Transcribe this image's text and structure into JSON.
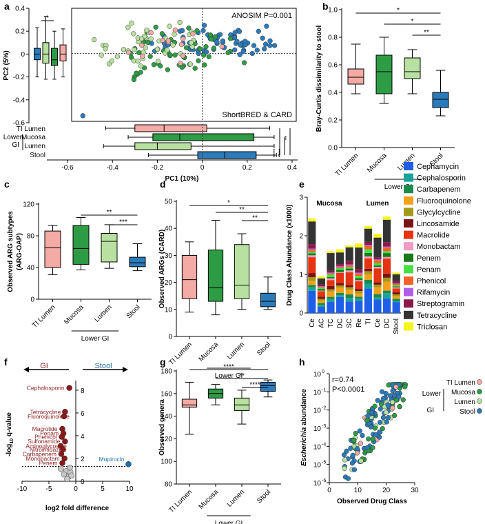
{
  "colors": {
    "ti": "#f4aaa5",
    "mucosa": "#2e9b45",
    "lumen": "#b8e0a0",
    "stool": "#2b7bba",
    "gi": "#8b1a1a",
    "stoolText": "#1c6ea4",
    "grey": "#c8c8c8"
  },
  "groups": {
    "ti": "TI Lumen",
    "mucosa": "Mucosa",
    "lumen": "Lumen",
    "stool": "Stool",
    "lower": "Lower GI",
    "lowerShort": "Lower",
    "gi": "GI"
  },
  "panels": {
    "a": {
      "label": "a",
      "anosim": "ANOSIM P=0.001",
      "method": "ShortBRED & CARD",
      "xlabel": "PC1 (10%)",
      "ylabel": "PC2 (5%)",
      "xticks": [
        "-0.6",
        "-0.4",
        "-0.2",
        "0",
        "0.2",
        "0.4"
      ],
      "yticks": [
        "0.4",
        "0.2",
        "0",
        "-0.2",
        "-0.4",
        "-0.6"
      ],
      "sig_small": "*",
      "sig_h1": "****",
      "sig_h2": "****",
      "sig_h3": "**"
    },
    "b": {
      "label": "b",
      "ylabel": "Bray-Curtis dissimilarity to stool",
      "yticks": [
        "0.0",
        "0.2",
        "0.4",
        "0.6",
        "0.8",
        "1.0"
      ],
      "sig": [
        "*",
        "*",
        "**"
      ]
    },
    "c": {
      "label": "c",
      "ylabel1": "Observed ARG subtypes",
      "ylabel2": "(ARG-OAP)",
      "yticks": [
        "0",
        "40",
        "80",
        "120"
      ],
      "sig": [
        "**",
        "***"
      ]
    },
    "d": {
      "label": "d",
      "ylabel": "Observed ARGs (CARD)",
      "yticks": [
        "0",
        "10",
        "20",
        "30",
        "40",
        "50"
      ],
      "sig": [
        "*",
        "**",
        "**"
      ]
    },
    "e": {
      "label": "e",
      "ylabel": "Drug Class Abundance (x1000)",
      "yticks": [
        "0",
        "1",
        "2",
        "3"
      ],
      "mucosa": "Mucosa",
      "lumen": "Lumen"
    },
    "f": {
      "label": "f",
      "ylabel": "-log",
      "ysub": "10",
      "ylabel_tail": " q-value",
      "xlabel": "log2 fold difference",
      "xticks": [
        "-10",
        "-5",
        "0",
        "5",
        "10"
      ],
      "yticks": [
        "0",
        "2",
        "4",
        "6",
        "8"
      ],
      "left": "GI",
      "right": "Stool"
    },
    "g": {
      "label": "g",
      "ylabel": "Observed genera",
      "yticks": [
        "80",
        "100",
        "120",
        "140",
        "160",
        "180"
      ],
      "sig": [
        "****",
        "**",
        "****"
      ]
    },
    "h": {
      "label": "h",
      "r": "r=0.74",
      "p": "P<0.0001",
      "ylabel_i": "Escherichia",
      "ylabel_r": " abundance",
      "xlabel": "Observed Drug Class",
      "xticks": [
        "0",
        "10",
        "20",
        "30"
      ],
      "yexp": [
        "0",
        "-1",
        "-2",
        "-3",
        "-4",
        "-5",
        "-6"
      ],
      "ybase": "10"
    }
  },
  "chart_data": [
    {
      "panel": "a",
      "type": "scatter",
      "title": "PCA of ARG profiles",
      "xlabel": "PC1 (10%)",
      "ylabel": "PC2 (5%)",
      "xlim": [
        -0.6,
        0.4
      ],
      "ylim": [
        -0.6,
        0.4
      ],
      "boxplots_pc2": {
        "ti": [
          -0.2,
          -0.05,
          0.0,
          0.05,
          0.23
        ],
        "stool": [
          -0.22,
          -0.08,
          0.0,
          0.1,
          0.33
        ],
        "mucosa": [
          -0.22,
          -0.1,
          -0.05,
          0.05,
          0.2
        ],
        "lumen": [
          -0.2,
          -0.06,
          0.0,
          0.08,
          0.22
        ]
      },
      "boxplots_pc1": {
        "ti": [
          -0.43,
          -0.3,
          -0.17,
          0.02,
          0.3
        ],
        "mucosa": [
          -0.33,
          -0.22,
          -0.1,
          0.23,
          0.32
        ],
        "lumen": [
          -0.44,
          -0.3,
          -0.2,
          -0.05,
          0.32
        ],
        "stool": [
          -0.24,
          -0.02,
          0.1,
          0.24,
          0.33
        ]
      }
    },
    {
      "panel": "b",
      "type": "box",
      "ylabel": "Bray-Curtis dissimilarity to stool",
      "ylim": [
        0,
        1.0
      ],
      "categories": [
        "TI Lumen",
        "Mucosa",
        "Lumen",
        "Stool"
      ],
      "boxes": [
        [
          0.39,
          0.46,
          0.51,
          0.57,
          0.75
        ],
        [
          0.32,
          0.39,
          0.55,
          0.67,
          0.8
        ],
        [
          0.39,
          0.5,
          0.55,
          0.65,
          0.71
        ],
        [
          0.23,
          0.29,
          0.35,
          0.4,
          0.56
        ]
      ]
    },
    {
      "panel": "c",
      "type": "box",
      "ylabel": "Observed ARG subtypes (ARG-OAP)",
      "ylim": [
        0,
        120
      ],
      "categories": [
        "TI Lumen",
        "Mucosa",
        "Lumen",
        "Stool"
      ],
      "boxes": [
        [
          31,
          40,
          65,
          86,
          93
        ],
        [
          37,
          44,
          64,
          93,
          103
        ],
        [
          39,
          47,
          73,
          83,
          94
        ],
        [
          36,
          41,
          46,
          53,
          70
        ]
      ]
    },
    {
      "panel": "d",
      "type": "box",
      "ylabel": "Observed ARGs (CARD)",
      "ylim": [
        0,
        50
      ],
      "categories": [
        "TI Lumen",
        "Mucosa",
        "Lumen",
        "Stool"
      ],
      "boxes": [
        [
          9,
          14,
          21,
          30,
          35
        ],
        [
          8,
          13,
          18,
          32,
          43
        ],
        [
          10,
          14,
          19,
          34,
          38
        ],
        [
          10,
          11,
          13,
          16,
          22
        ]
      ]
    },
    {
      "panel": "e",
      "type": "bar",
      "ylabel": "Drug Class Abundance (x1000)",
      "ylim": [
        0,
        3
      ],
      "categories": [
        "Ce",
        "AC",
        "TC",
        "DC",
        "SC",
        "Re",
        "TI",
        "Ce",
        "DC",
        "Stool"
      ],
      "group_labels": [
        "Mucosa",
        "Lumen"
      ],
      "totals": [
        2.45,
        0.95,
        1.6,
        1.65,
        1.75,
        1.8,
        2.25,
        2.05,
        2.5,
        1.05
      ],
      "legend": [
        "Cephamycin",
        "Cephalosporin",
        "Carbapenem",
        "Fluoroquinolone",
        "Glycylcycline",
        "Lincosamide",
        "Macrolide",
        "Monobactam",
        "Penem",
        "Penam",
        "Phenicol",
        "Rifamycin",
        "Streptogramin",
        "Tetracycline",
        "Triclosan"
      ],
      "legend_colors": [
        "#1f5fe8",
        "#1aa39a",
        "#1b8a4c",
        "#f4a11a",
        "#a49a1a",
        "#7a1414",
        "#e63312",
        "#f39ac4",
        "#1a7a1a",
        "#44e044",
        "#f4622a",
        "#b05de8",
        "#8a1a4a",
        "#333333",
        "#f4f41a"
      ],
      "proportions": [
        0.2,
        0.04,
        0.04,
        0.07,
        0.05,
        0.04,
        0.14,
        0.02,
        0.03,
        0.03,
        0.03,
        0.01,
        0.04,
        0.22,
        0.04
      ]
    },
    {
      "panel": "f",
      "type": "scatter",
      "xlabel": "log2 fold difference",
      "ylabel": "-log10 q-value",
      "xlim": [
        -10,
        10
      ],
      "ylim": [
        0,
        8
      ],
      "threshold": 1.3,
      "labeled_points": [
        {
          "name": "Cephalosporin",
          "x": -1.2,
          "y": 8.2
        },
        {
          "name": "Tetracycline",
          "x": -2.0,
          "y": 6.1
        },
        {
          "name": "Fluoroquinolone",
          "x": -2.2,
          "y": 5.7
        },
        {
          "name": "Macrolide",
          "x": -2.5,
          "y": 4.6
        },
        {
          "name": "Penam",
          "x": -2.3,
          "y": 4.2
        },
        {
          "name": "Phenicol",
          "x": -2.6,
          "y": 3.9
        },
        {
          "name": "Sulfonamide",
          "x": -2.0,
          "y": 3.5
        },
        {
          "name": "Aminoglycoside",
          "x": -2.8,
          "y": 3.1
        },
        {
          "name": "Nitroimidazole",
          "x": -2.4,
          "y": 2.8
        },
        {
          "name": "Carbapenem",
          "x": -2.7,
          "y": 2.4
        },
        {
          "name": "Monobactam",
          "x": -2.1,
          "y": 2.0
        },
        {
          "name": "Penem",
          "x": -2.5,
          "y": 1.6
        },
        {
          "name": "Mupirocin",
          "x": 9.8,
          "y": 1.5
        }
      ],
      "ns_points": [
        [
          -2.8,
          1.1
        ],
        [
          -1.8,
          0.9
        ],
        [
          -2.2,
          0.6
        ],
        [
          -1.3,
          0.4
        ],
        [
          -1.0,
          0.8
        ],
        [
          -1.6,
          0.2
        ],
        [
          -0.8,
          0.5
        ],
        [
          -1.1,
          1.2
        ]
      ]
    },
    {
      "panel": "g",
      "type": "box",
      "ylabel": "Observed genera",
      "ylim": [
        80,
        180
      ],
      "categories": [
        "TI Lumen",
        "Mucosa",
        "Lumen",
        "Stool"
      ],
      "boxes": [
        [
          124,
          148,
          150,
          155,
          170
        ],
        [
          150,
          156,
          160,
          164,
          168
        ],
        [
          133,
          145,
          150,
          156,
          163
        ],
        [
          157,
          162,
          167,
          170,
          172
        ]
      ]
    },
    {
      "panel": "h",
      "type": "scatter",
      "xlabel": "Observed Drug Class",
      "ylabel": "Escherichia abundance",
      "xlim": [
        0,
        30
      ],
      "ylim_log10": [
        -6,
        0
      ],
      "r": 0.74,
      "p": "<0.0001"
    }
  ]
}
